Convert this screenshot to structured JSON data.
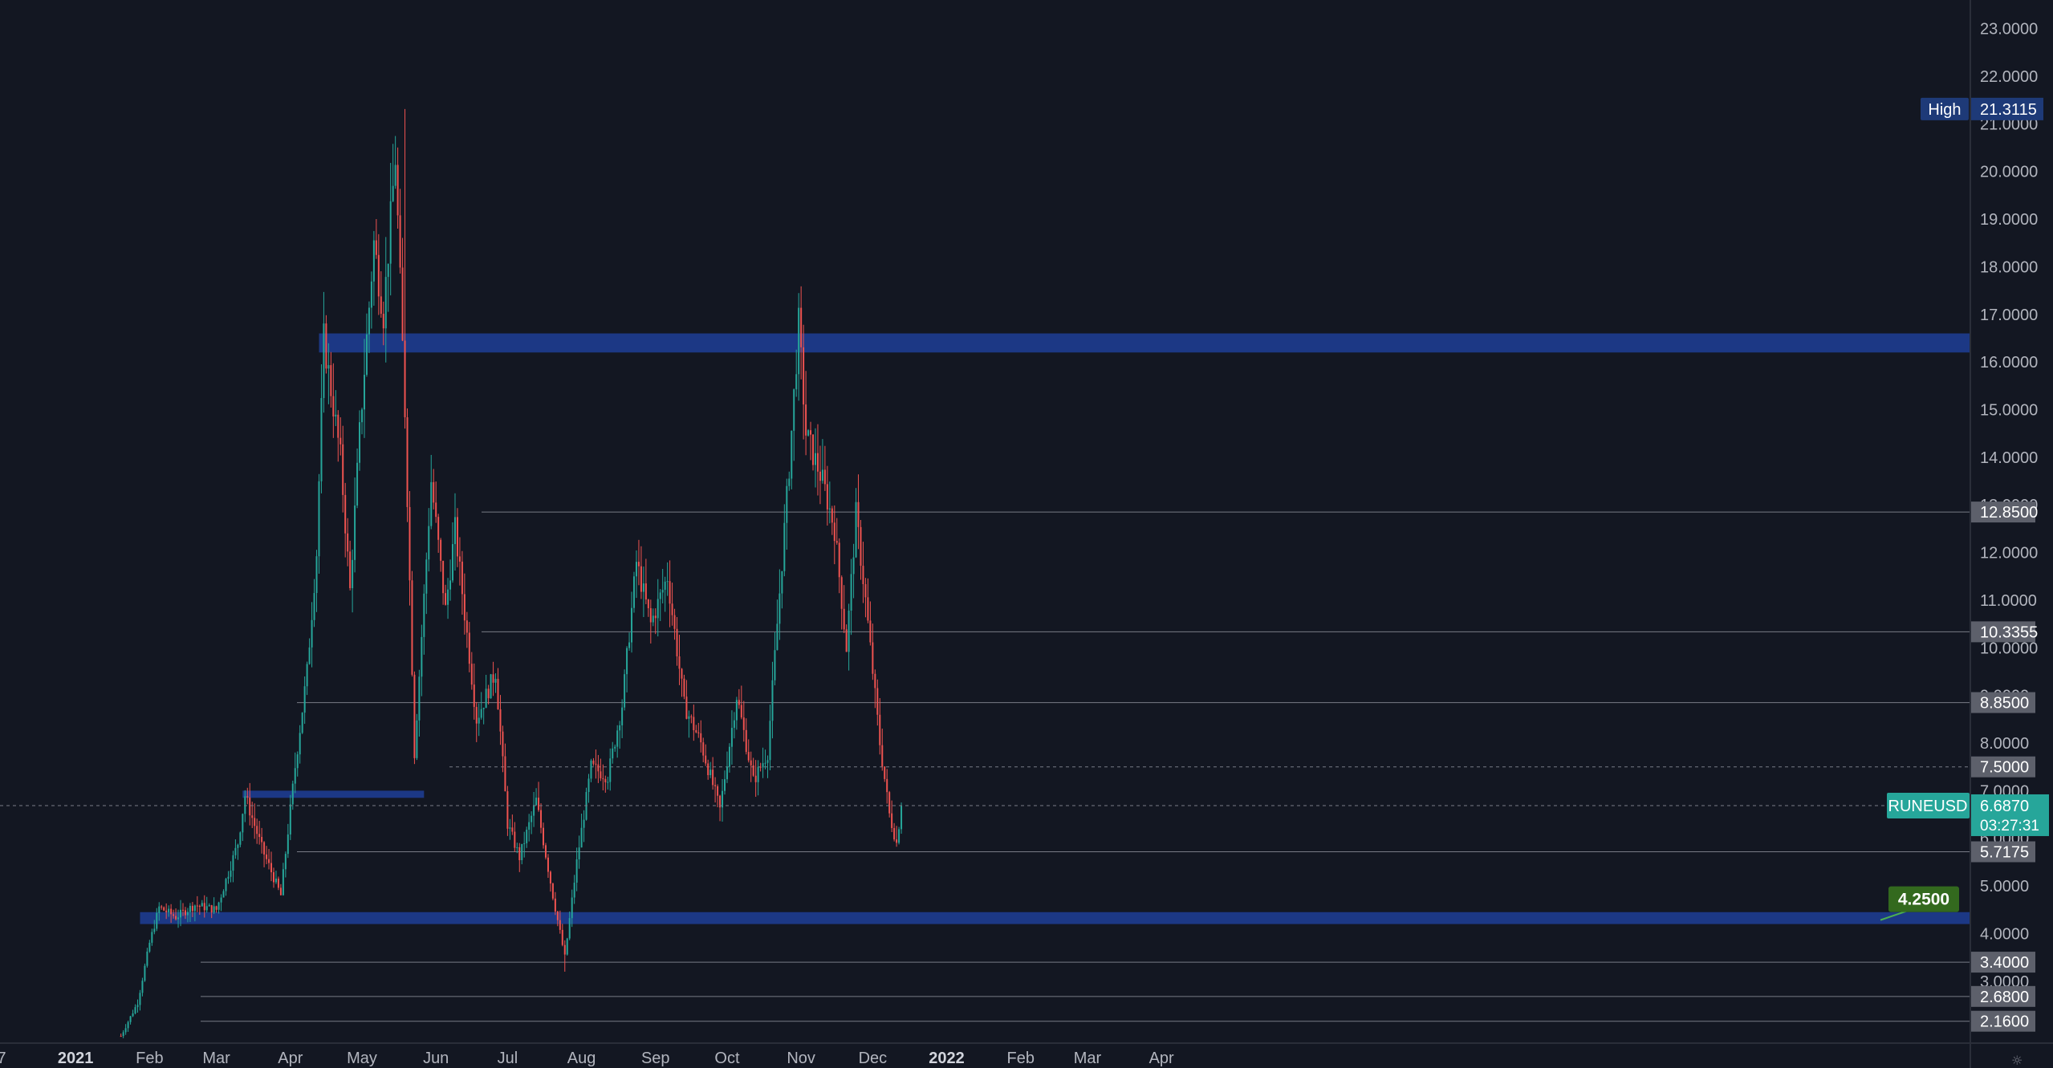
{
  "symbol": "RUNEUSD",
  "last_price": "6.6870",
  "countdown": "03:27:31",
  "high_label": "High",
  "high_value": "21.3115",
  "target_value": "4.2500",
  "colors": {
    "background": "#131722",
    "bullish": "#26a69a",
    "bearish": "#ef5350",
    "zone": "#2962ff",
    "level_line": "#787b86",
    "price_tag": "#26a69a",
    "high_tag": "#1e3a78",
    "target_tag": "#33691e"
  },
  "price_axis": {
    "min": 1.7,
    "max": 23.6,
    "ticks": [
      "3.0000",
      "4.0000",
      "5.0000",
      "6.0000",
      "7.0000",
      "8.0000",
      "9.0000",
      "10.0000",
      "11.0000",
      "12.0000",
      "13.0000",
      "14.0000",
      "15.0000",
      "16.0000",
      "17.0000",
      "18.0000",
      "19.0000",
      "20.0000",
      "21.0000",
      "22.0000",
      "23.0000"
    ]
  },
  "time_axis": {
    "labels": [
      {
        "text": "7",
        "date": "2020-12-01"
      },
      {
        "text": "2021",
        "date": "2021-01-01",
        "bold": true
      },
      {
        "text": "Feb",
        "date": "2021-02-01"
      },
      {
        "text": "Mar",
        "date": "2021-03-01"
      },
      {
        "text": "Apr",
        "date": "2021-04-01"
      },
      {
        "text": "May",
        "date": "2021-05-01"
      },
      {
        "text": "Jun",
        "date": "2021-06-01"
      },
      {
        "text": "Jul",
        "date": "2021-07-01"
      },
      {
        "text": "Aug",
        "date": "2021-08-01"
      },
      {
        "text": "Sep",
        "date": "2021-09-01"
      },
      {
        "text": "Oct",
        "date": "2021-10-01"
      },
      {
        "text": "Nov",
        "date": "2021-11-01"
      },
      {
        "text": "Dec",
        "date": "2021-12-01"
      },
      {
        "text": "2022",
        "date": "2022-01-01",
        "bold": true
      },
      {
        "text": "Feb",
        "date": "2022-02-01"
      },
      {
        "text": "Mar",
        "date": "2022-03-01"
      },
      {
        "text": "Apr",
        "date": "2022-04-01"
      }
    ]
  },
  "horizontal_levels": [
    {
      "value": 12.85,
      "label": "12.8500"
    },
    {
      "value": 10.3355,
      "label": "10.3355"
    },
    {
      "value": 8.85,
      "label": "8.8500"
    },
    {
      "value": 7.5,
      "label": "7.5000"
    },
    {
      "value": 5.7175,
      "label": "5.7175"
    },
    {
      "value": 3.4,
      "label": "3.4000"
    },
    {
      "value": 2.68,
      "label": "2.6800"
    },
    {
      "value": 2.16,
      "label": "2.1600"
    }
  ],
  "zones": [
    {
      "low": 16.2,
      "high": 16.6,
      "from": "2021-04-13",
      "to": "end"
    },
    {
      "low": 6.85,
      "high": 7.0,
      "from": "2021-03-12",
      "to": "2021-05-27"
    },
    {
      "low": 4.2,
      "high": 4.45,
      "from": "2021-01-28",
      "to": "end"
    }
  ],
  "chart_data": {
    "type": "candlestick",
    "title": "",
    "series": [
      {
        "name": "RUNEUSD",
        "interval": "1D",
        "anchor_points": [
          {
            "date": "2021-01-20",
            "close": 1.85
          },
          {
            "date": "2021-01-27",
            "close": 2.55
          },
          {
            "date": "2021-02-01",
            "close": 3.8
          },
          {
            "date": "2021-02-05",
            "close": 4.55
          },
          {
            "date": "2021-02-12",
            "close": 4.35
          },
          {
            "date": "2021-02-20",
            "close": 4.6
          },
          {
            "date": "2021-03-01",
            "close": 4.5
          },
          {
            "date": "2021-03-10",
            "close": 5.9
          },
          {
            "date": "2021-03-13",
            "close": 6.9
          },
          {
            "date": "2021-03-20",
            "close": 5.8
          },
          {
            "date": "2021-03-28",
            "close": 4.8
          },
          {
            "date": "2021-04-03",
            "close": 7.5
          },
          {
            "date": "2021-04-08",
            "close": 9.5
          },
          {
            "date": "2021-04-12",
            "close": 12.0
          },
          {
            "date": "2021-04-15",
            "close": 16.5
          },
          {
            "date": "2021-04-22",
            "close": 14.0
          },
          {
            "date": "2021-04-26",
            "close": 11.2
          },
          {
            "date": "2021-04-30",
            "close": 14.5
          },
          {
            "date": "2021-05-06",
            "close": 18.5
          },
          {
            "date": "2021-05-10",
            "close": 17.0
          },
          {
            "date": "2021-05-15",
            "close": 20.3
          },
          {
            "date": "2021-05-19",
            "close": 15.0
          },
          {
            "date": "2021-05-23",
            "close": 7.8
          },
          {
            "date": "2021-05-30",
            "close": 13.5
          },
          {
            "date": "2021-06-05",
            "close": 10.8
          },
          {
            "date": "2021-06-09",
            "close": 12.5
          },
          {
            "date": "2021-06-18",
            "close": 8.5
          },
          {
            "date": "2021-06-26",
            "close": 9.5
          },
          {
            "date": "2021-07-01",
            "close": 6.3
          },
          {
            "date": "2021-07-06",
            "close": 5.6
          },
          {
            "date": "2021-07-13",
            "close": 6.8
          },
          {
            "date": "2021-07-20",
            "close": 4.8
          },
          {
            "date": "2021-07-25",
            "close": 3.5
          },
          {
            "date": "2021-07-30",
            "close": 5.5
          },
          {
            "date": "2021-08-05",
            "close": 7.5
          },
          {
            "date": "2021-08-12",
            "close": 7.3
          },
          {
            "date": "2021-08-18",
            "close": 8.8
          },
          {
            "date": "2021-08-24",
            "close": 11.8
          },
          {
            "date": "2021-08-30",
            "close": 10.5
          },
          {
            "date": "2021-09-06",
            "close": 11.5
          },
          {
            "date": "2021-09-13",
            "close": 8.8
          },
          {
            "date": "2021-09-20",
            "close": 8.0
          },
          {
            "date": "2021-09-28",
            "close": 6.6
          },
          {
            "date": "2021-10-05",
            "close": 9.0
          },
          {
            "date": "2021-10-12",
            "close": 7.2
          },
          {
            "date": "2021-10-18",
            "close": 7.8
          },
          {
            "date": "2021-10-22",
            "close": 10.5
          },
          {
            "date": "2021-10-27",
            "close": 13.8
          },
          {
            "date": "2021-10-31",
            "close": 16.8
          },
          {
            "date": "2021-11-03",
            "close": 14.5
          },
          {
            "date": "2021-11-10",
            "close": 13.5
          },
          {
            "date": "2021-11-15",
            "close": 12.5
          },
          {
            "date": "2021-11-20",
            "close": 10.0
          },
          {
            "date": "2021-11-24",
            "close": 12.8
          },
          {
            "date": "2021-11-28",
            "close": 11.0
          },
          {
            "date": "2021-12-04",
            "close": 8.0
          },
          {
            "date": "2021-12-08",
            "close": 6.5
          },
          {
            "date": "2021-12-11",
            "close": 5.9
          },
          {
            "date": "2021-12-13",
            "close": 6.69
          }
        ]
      }
    ],
    "highs": [
      {
        "date": "2021-05-19",
        "value": 21.3115
      }
    ],
    "lows": [
      {
        "date": "2021-07-25",
        "value": 3.2
      }
    ],
    "xlabel": "",
    "ylabel": "",
    "grid": false
  }
}
